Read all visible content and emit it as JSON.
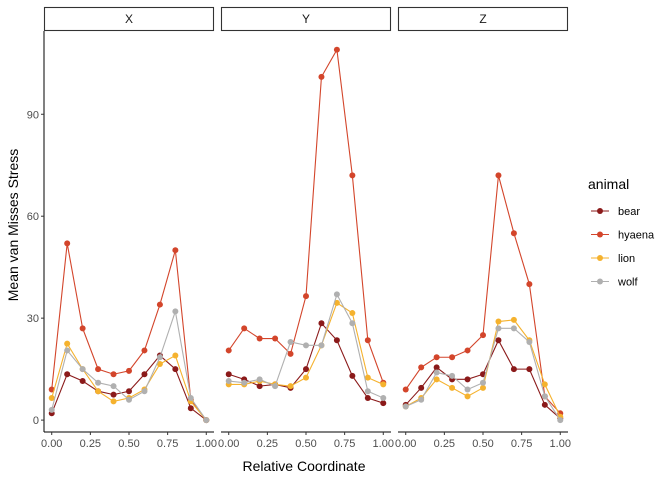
{
  "chart_data": {
    "type": "line",
    "xlabel": "Relative Coordinate",
    "ylabel": "Mean van Misses Stress",
    "facet_labels": [
      "X",
      "Y",
      "Z"
    ],
    "x": [
      0,
      0.1,
      0.2,
      0.3,
      0.4,
      0.5,
      0.6,
      0.7,
      0.8,
      0.9,
      1.0
    ],
    "xticks": [
      "0.00",
      "0.25",
      "0.50",
      "0.75",
      "1.00"
    ],
    "xtick_values": [
      0,
      0.25,
      0.5,
      0.75,
      1.0
    ],
    "yticks": [
      "0",
      "30",
      "60",
      "90"
    ],
    "ytick_values": [
      0,
      30,
      60,
      90
    ],
    "xlim": [
      -0.05,
      1.05
    ],
    "ylim": [
      -3.5,
      114.5
    ],
    "legend": {
      "title": "animal",
      "placement": "right"
    },
    "grid": false,
    "series": [
      {
        "name": "bear",
        "color": "#8B1A1A",
        "facets": [
          [
            2,
            13.5,
            11.5,
            8.5,
            7.5,
            8.5,
            13.5,
            19,
            15,
            3.5,
            0
          ],
          [
            13.5,
            12,
            10,
            10.5,
            9.5,
            15,
            28.5,
            23.5,
            13,
            6.5,
            5
          ],
          [
            4.5,
            9.5,
            15.5,
            12,
            12,
            13.5,
            23.5,
            15,
            15,
            4.5,
            0.5
          ]
        ]
      },
      {
        "name": "hyaena",
        "color": "#D3452B",
        "facets": [
          [
            9,
            52,
            27,
            15,
            13.5,
            14.5,
            20.5,
            34,
            50,
            6,
            0
          ],
          [
            20.5,
            27,
            24,
            24,
            19.5,
            36.5,
            101,
            109,
            72,
            23.5,
            11
          ],
          [
            9,
            15.5,
            18.5,
            18.5,
            20.5,
            25,
            72,
            55,
            40,
            7,
            2
          ]
        ]
      },
      {
        "name": "lion",
        "color": "#F5B22E",
        "facets": [
          [
            6.5,
            22.5,
            15,
            8.5,
            5.5,
            6.5,
            9,
            16.5,
            19,
            5.5,
            0
          ],
          [
            10.5,
            10.5,
            11.5,
            10.5,
            10,
            12.5,
            22,
            34.5,
            31.5,
            12.5,
            10.5
          ],
          [
            4,
            6.5,
            12,
            9.5,
            7,
            9.5,
            29,
            29.5,
            23.5,
            10.5,
            1
          ]
        ]
      },
      {
        "name": "wolf",
        "color": "#B0B0B0",
        "facets": [
          [
            3,
            20.5,
            15,
            11,
            10,
            6,
            8.5,
            18.5,
            32,
            6.5,
            0
          ],
          [
            11.5,
            11,
            12,
            10,
            23,
            22,
            22,
            37,
            28.5,
            8.5,
            6.5
          ],
          [
            4,
            6,
            14,
            13,
            9,
            11,
            27,
            27,
            23,
            7,
            0
          ]
        ]
      }
    ]
  }
}
